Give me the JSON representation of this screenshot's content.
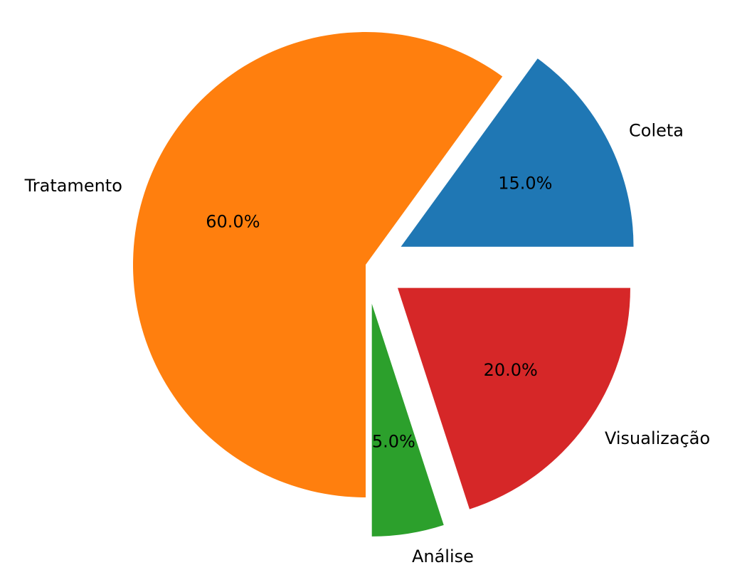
{
  "chart_data": {
    "type": "pie",
    "labels": [
      "Coleta",
      "Tratamento",
      "Análise",
      "Visualização"
    ],
    "values": [
      15,
      60,
      5,
      20
    ],
    "percent_labels": [
      "15.0%",
      "60.0%",
      "5.0%",
      "20.0%"
    ],
    "exploded": [
      true,
      false,
      true,
      true
    ],
    "start_angle_deg": 0,
    "direction": "counterclockwise",
    "colors": [
      "#1f77b4",
      "#ff7f0e",
      "#2ca02c",
      "#d62728"
    ]
  }
}
